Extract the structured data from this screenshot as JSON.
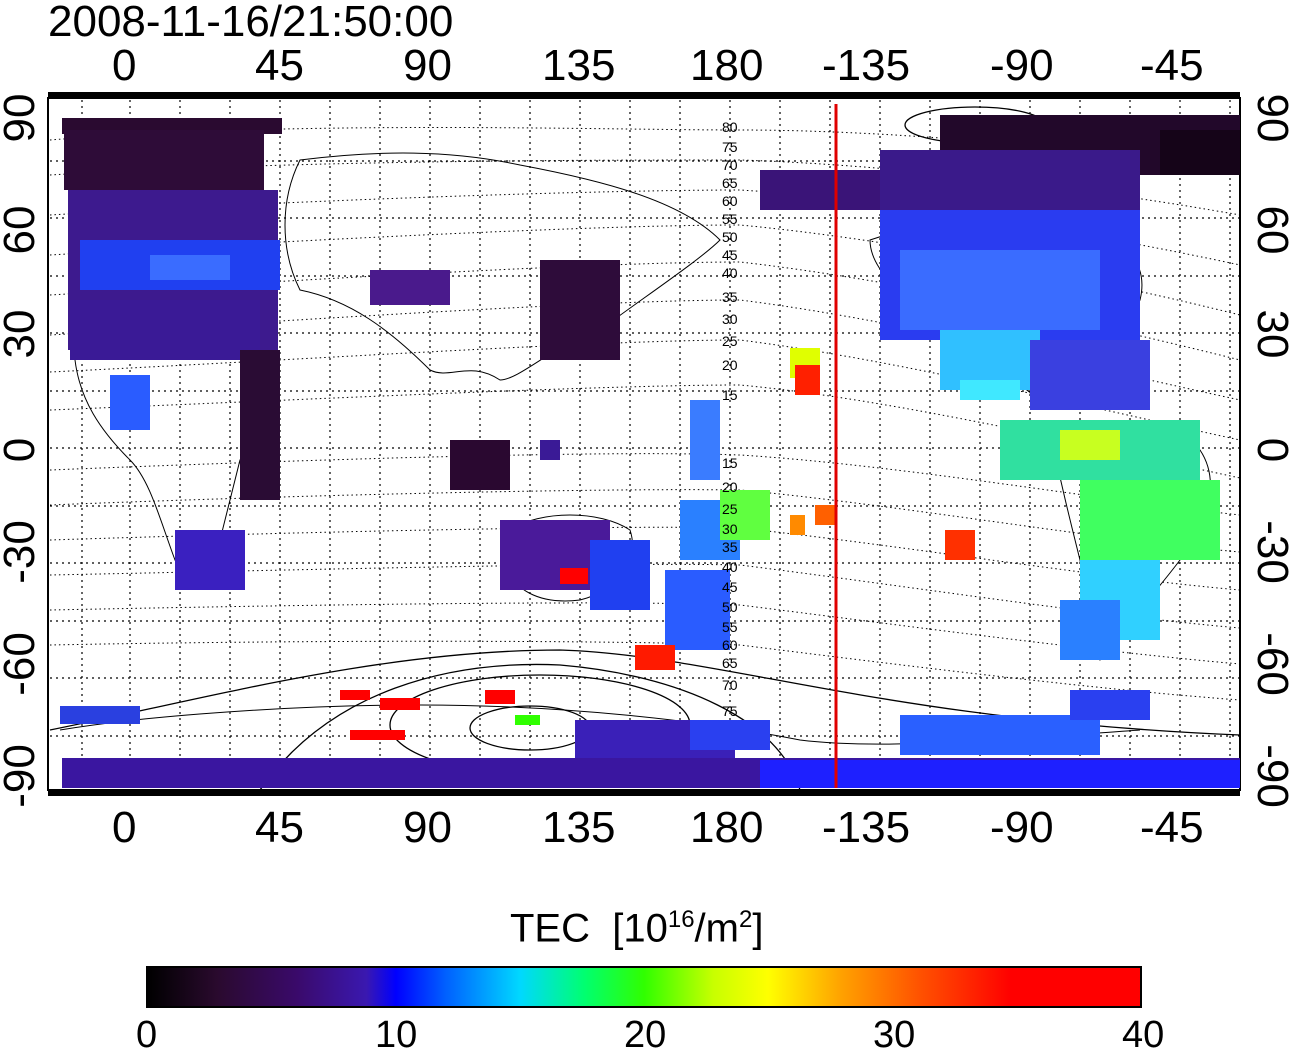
{
  "timestamp": "2008-11-16/21:50:00",
  "map": {
    "top_lon_labels": [
      "0",
      "45",
      "90",
      "135",
      "180",
      "-135",
      "-90",
      "-45"
    ],
    "bottom_lon_labels": [
      "0",
      "45",
      "90",
      "135",
      "180",
      "-135",
      "-90",
      "-45"
    ],
    "lat_labels": [
      "90",
      "60",
      "30",
      "0",
      "-30",
      "-60",
      "-90"
    ],
    "contour_labels": [
      "80",
      "75",
      "70",
      "65",
      "60",
      "55",
      "50",
      "45",
      "40",
      "35",
      "30",
      "25",
      "20",
      "15",
      "15",
      "20",
      "25",
      "30",
      "35",
      "40",
      "45",
      "50",
      "55",
      "60",
      "65",
      "70",
      "75"
    ],
    "terminator_color": "#e00000",
    "terminator_lon": -150
  },
  "colorbar": {
    "title": "TEC",
    "unit_prefix": "[10",
    "unit_exp1": "16",
    "unit_mid": "/m",
    "unit_exp2": "2",
    "unit_suffix": "]",
    "labels": [
      "0",
      "10",
      "20",
      "30",
      "40"
    ],
    "range": [
      0,
      40
    ],
    "colors": [
      "#000000",
      "#3a0a6a",
      "#0000ff",
      "#00d8ff",
      "#30ff00",
      "#ffff00",
      "#ff5000",
      "#ff0000"
    ]
  }
}
